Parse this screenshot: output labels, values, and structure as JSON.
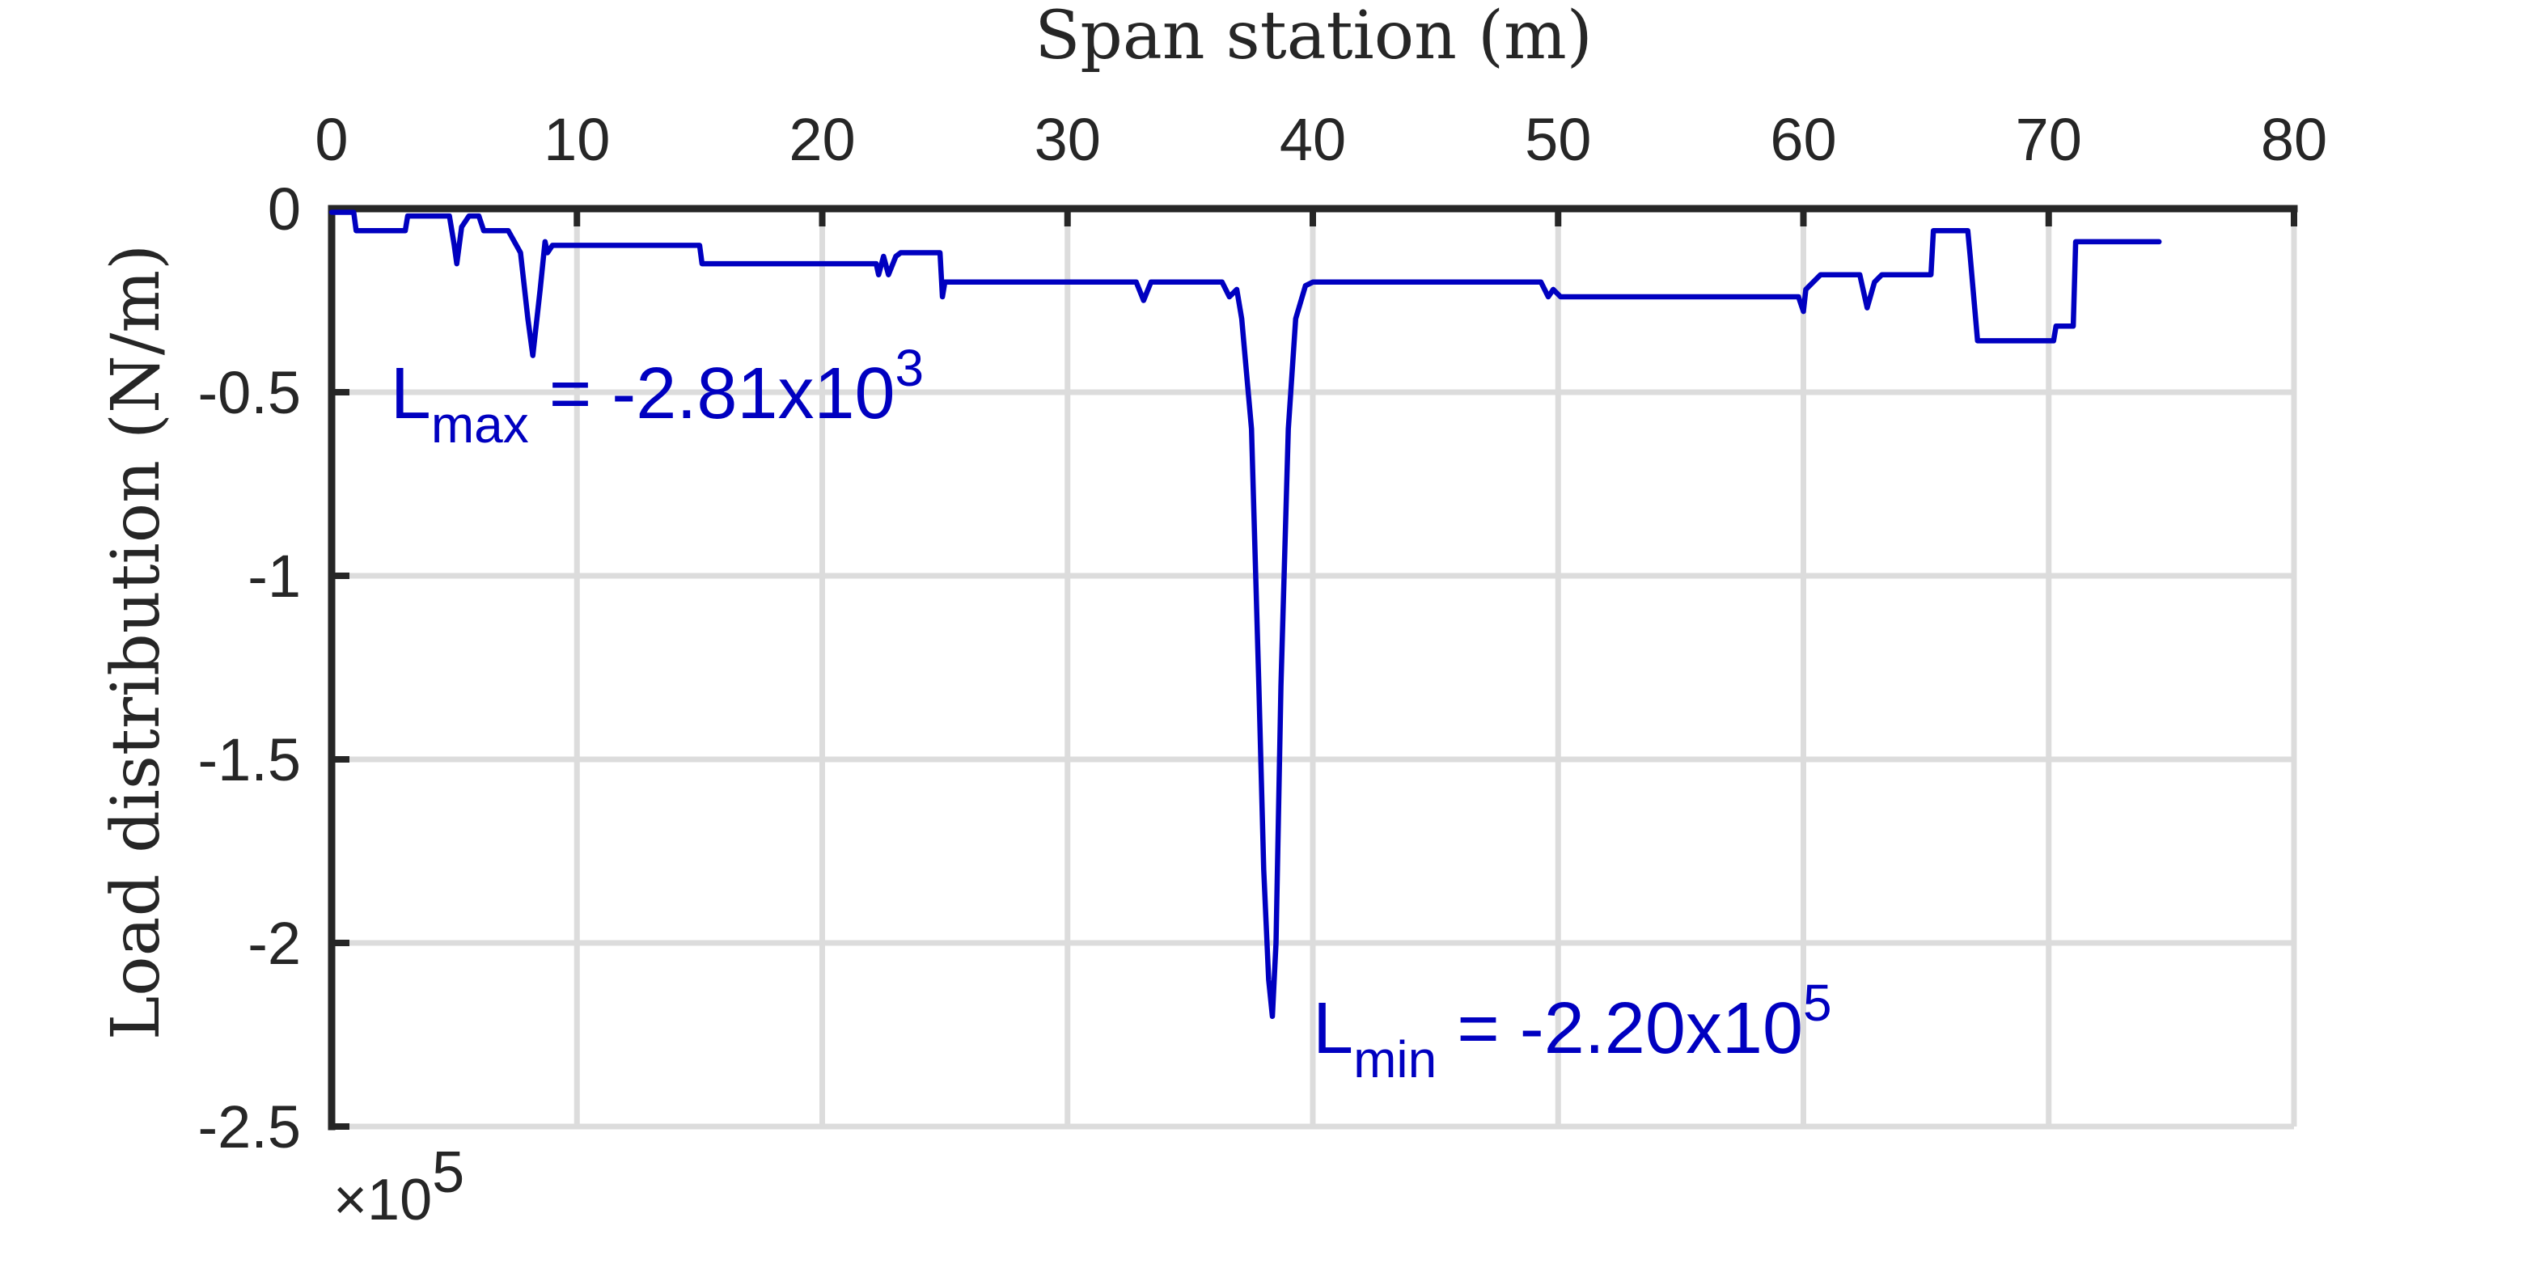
{
  "chart_data": {
    "type": "line",
    "xlabel": "Span station (m)",
    "ylabel": "Load distribution (N/m)",
    "x_axis_position": "top",
    "xlim": [
      0,
      80
    ],
    "ylim": [
      -2.5,
      0
    ],
    "xticks": [
      0,
      10,
      20,
      30,
      40,
      50,
      60,
      70,
      80
    ],
    "xtick_labels": [
      "0",
      "10",
      "20",
      "30",
      "40",
      "50",
      "60",
      "70",
      "80"
    ],
    "yticks": [
      0,
      -0.5,
      -1,
      -1.5,
      -2,
      -2.5
    ],
    "ytick_labels": [
      "0",
      "-0.5",
      "-1",
      "-1.5",
      "-2",
      "-2.5"
    ],
    "y_multiplier_label": "×10",
    "y_multiplier_exponent": "5",
    "grid": true,
    "color": "#0000c0",
    "series": [
      {
        "x": [
          0,
          0.9,
          1.0,
          3.0,
          3.1,
          4.8,
          5.0,
          5.1,
          5.3,
          5.6,
          6.0,
          6.2,
          7.2,
          7.7,
          8.0,
          8.2,
          8.5,
          8.7,
          8.8,
          9.0,
          9.2,
          15.0,
          15.1,
          22.2,
          22.3,
          22.5,
          22.7,
          23.0,
          23.2,
          23.5,
          24.8,
          24.9,
          25.0,
          25.1,
          32.8,
          33.1,
          33.4,
          36.3,
          36.6,
          36.9,
          37.1,
          37.5,
          37.8,
          38.0,
          38.2,
          38.35,
          38.5,
          38.7,
          39.0,
          39.3,
          39.7,
          40.0,
          49.3,
          49.6,
          49.8,
          50.1,
          59.8,
          60.0,
          60.1,
          60.4,
          60.7,
          61.2,
          62.3,
          62.6,
          62.9,
          63.2,
          65.2,
          65.3,
          66.7,
          66.8,
          67.1,
          67.2,
          70.2,
          70.3,
          71.0,
          71.1,
          74.5
        ],
        "y": [
          -0.01,
          -0.01,
          -0.06,
          -0.06,
          -0.02,
          -0.02,
          -0.1,
          -0.15,
          -0.05,
          -0.02,
          -0.02,
          -0.06,
          -0.06,
          -0.12,
          -0.3,
          -0.4,
          -0.22,
          -0.09,
          -0.12,
          -0.1,
          -0.1,
          -0.1,
          -0.15,
          -0.15,
          -0.18,
          -0.13,
          -0.18,
          -0.13,
          -0.12,
          -0.12,
          -0.12,
          -0.24,
          -0.2,
          -0.2,
          -0.2,
          -0.25,
          -0.2,
          -0.2,
          -0.24,
          -0.22,
          -0.3,
          -0.6,
          -1.3,
          -1.8,
          -2.1,
          -2.2,
          -2.0,
          -1.3,
          -0.6,
          -0.3,
          -0.21,
          -0.2,
          -0.2,
          -0.24,
          -0.22,
          -0.24,
          -0.24,
          -0.28,
          -0.22,
          -0.2,
          -0.18,
          -0.18,
          -0.18,
          -0.27,
          -0.2,
          -0.18,
          -0.18,
          -0.06,
          -0.06,
          -0.13,
          -0.36,
          -0.36,
          -0.36,
          -0.32,
          -0.32,
          -0.09,
          -0.09
        ]
      }
    ],
    "annotations": [
      {
        "label": "L",
        "sub": "max",
        "value_text": " = -2.81x10",
        "exp": "3",
        "x": 2.4,
        "y": -0.57
      },
      {
        "label": "L",
        "sub": "min",
        "value_text": " = -2.20x10",
        "exp": "5",
        "x": 40.0,
        "y": -2.3
      }
    ]
  }
}
